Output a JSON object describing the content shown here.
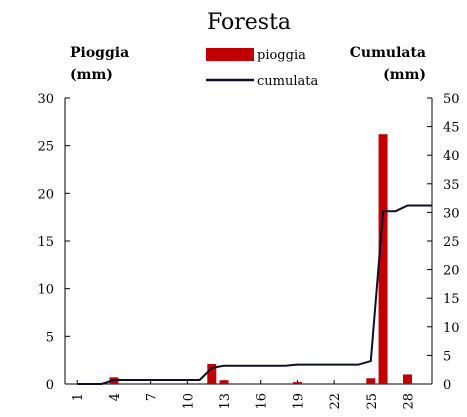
{
  "chart_data": {
    "type": "bar",
    "title": "Foresta",
    "y_left_label": [
      "Pioggia",
      "(mm)"
    ],
    "y_right_label": [
      "Cumulata",
      "(mm)"
    ],
    "y_left_ticks": [
      0,
      5,
      10,
      15,
      20,
      25,
      30
    ],
    "y_right_ticks": [
      0,
      5,
      10,
      15,
      20,
      25,
      30,
      35,
      40,
      45,
      50
    ],
    "ylim_left": [
      0,
      30
    ],
    "ylim_right": [
      0,
      50
    ],
    "x_tick_labels": [
      "1",
      "4",
      "7",
      "10",
      "13",
      "16",
      "19",
      "22",
      "25",
      "28"
    ],
    "x_tick_values": [
      1,
      4,
      7,
      10,
      13,
      16,
      19,
      22,
      25,
      28
    ],
    "xlim": [
      0,
      30
    ],
    "series": [
      {
        "name": "pioggia",
        "type": "bar",
        "axis": "left",
        "color": "#c00000",
        "x": [
          4,
          12,
          13,
          19,
          25,
          26,
          28
        ],
        "values": [
          0.7,
          2.1,
          0.4,
          0.2,
          0.6,
          26.2,
          1.0
        ]
      },
      {
        "name": "cumulata",
        "type": "line",
        "axis": "right",
        "color": "#0d0d2b",
        "x": [
          1,
          2,
          3,
          4,
          5,
          6,
          7,
          8,
          9,
          10,
          11,
          12,
          13,
          14,
          15,
          16,
          17,
          18,
          19,
          20,
          21,
          22,
          23,
          24,
          25,
          26,
          27,
          28,
          29,
          30
        ],
        "values": [
          0,
          0,
          0,
          0.7,
          0.7,
          0.7,
          0.7,
          0.7,
          0.7,
          0.7,
          0.7,
          2.8,
          3.2,
          3.2,
          3.2,
          3.2,
          3.2,
          3.2,
          3.4,
          3.4,
          3.4,
          3.4,
          3.4,
          3.4,
          4.0,
          30.2,
          30.2,
          31.2,
          31.2,
          31.2
        ]
      }
    ]
  }
}
